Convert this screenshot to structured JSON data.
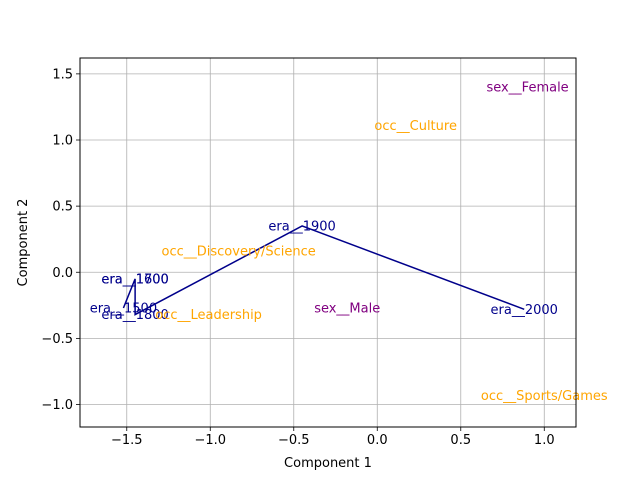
{
  "chart_data": {
    "type": "scatter",
    "xlabel": "Component 1",
    "ylabel": "Component 2",
    "xlim": [
      -1.78,
      1.19
    ],
    "ylim": [
      -1.17,
      1.62
    ],
    "grid": true,
    "x_ticks": [
      -1.5,
      -1.0,
      -0.5,
      0.0,
      0.5,
      1.0
    ],
    "x_tick_labels": [
      "−1.5",
      "−1.0",
      "−0.5",
      "0.0",
      "0.5",
      "1.0"
    ],
    "y_ticks": [
      -1.0,
      -0.5,
      0.0,
      0.5,
      1.0,
      1.5
    ],
    "y_tick_labels": [
      "−1.0",
      "−0.5",
      "0.0",
      "0.5",
      "1.0",
      "1.5"
    ],
    "colors": {
      "era": "#00008b",
      "occ": "#ffa500",
      "sex": "#800080"
    },
    "series": [
      {
        "group": "era",
        "connected": true,
        "points": [
          {
            "label": "era__1500",
            "x": -1.52,
            "y": -0.27
          },
          {
            "label": "era__1600",
            "x": -1.45,
            "y": -0.05
          },
          {
            "label": "era__1700",
            "x": -1.45,
            "y": -0.05
          },
          {
            "label": "era__1800",
            "x": -1.45,
            "y": -0.32
          },
          {
            "label": "era__1900",
            "x": -0.45,
            "y": 0.35
          },
          {
            "label": "era__2000",
            "x": 0.88,
            "y": -0.28
          }
        ]
      },
      {
        "group": "occ",
        "connected": false,
        "points": [
          {
            "label": "occ__Culture",
            "x": 0.23,
            "y": 1.11
          },
          {
            "label": "occ__Discovery/Science",
            "x": -0.83,
            "y": 0.16
          },
          {
            "label": "occ__Leadership",
            "x": -1.01,
            "y": -0.32
          },
          {
            "label": "occ__Sports/Games",
            "x": 1.0,
            "y": -0.93
          }
        ]
      },
      {
        "group": "sex",
        "connected": false,
        "points": [
          {
            "label": "sex__Female",
            "x": 0.9,
            "y": 1.4
          },
          {
            "label": "sex__Male",
            "x": -0.18,
            "y": -0.27
          }
        ]
      }
    ]
  }
}
